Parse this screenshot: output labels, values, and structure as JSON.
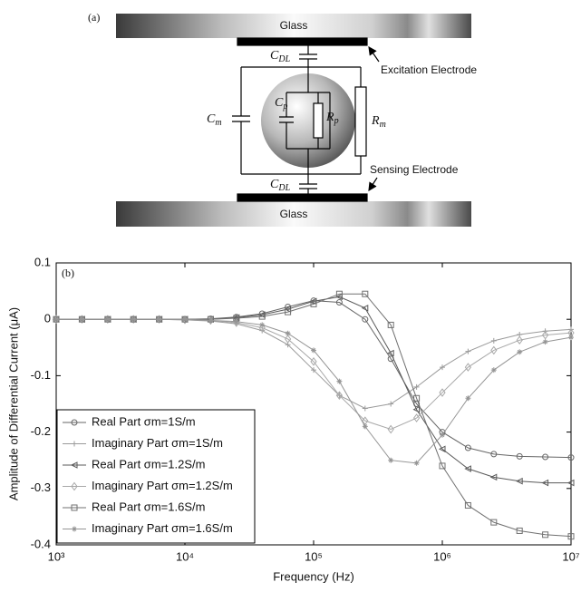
{
  "diagram": {
    "label": "(a)",
    "top_glass": "Glass",
    "bottom_glass": "Glass",
    "excitation": "Excitation Electrode",
    "sensing": "Sensing Electrode",
    "c_dl_top": {
      "main": "C",
      "sub": "DL"
    },
    "c_dl_bottom": {
      "main": "C",
      "sub": "DL"
    },
    "c_m": {
      "main": "C",
      "sub": "m"
    },
    "c_p": {
      "main": "C",
      "sub": "p"
    },
    "r_p": {
      "main": "R",
      "sub": "p"
    },
    "r_m": {
      "main": "R",
      "sub": "m"
    }
  },
  "chart_data": {
    "type": "line",
    "label": "(b)",
    "x_label": "Frequency (Hz)",
    "y_label": "Amplitude of Differential Current (μA)",
    "log_x": true,
    "legend": "lower left",
    "xlim": [
      1000,
      10000000
    ],
    "xticks": [
      {
        "value": 1000,
        "label": "10³"
      },
      {
        "value": 10000,
        "label": "10⁴"
      },
      {
        "value": 100000,
        "label": "10⁵"
      },
      {
        "value": 1000000,
        "label": "10⁶"
      },
      {
        "value": 10000000,
        "label": "10⁷"
      }
    ],
    "ylim": [
      -0.4,
      0.1
    ],
    "yticks": [
      0.1,
      0,
      -0.1,
      -0.2,
      -0.3,
      -0.4
    ],
    "x": [
      1000,
      1585,
      2512,
      3981,
      6310,
      10000,
      15849,
      25119,
      39811,
      63096,
      100000,
      158489,
      251189,
      398107,
      630957,
      1000000,
      1584893,
      2511886,
      3981072,
      6309573,
      10000000
    ],
    "series": [
      {
        "name": "Real Part σm=1S/m",
        "color": "#666666",
        "marker": "circle",
        "values": [
          0,
          0,
          0,
          0,
          0,
          0,
          0.001,
          0.004,
          0.01,
          0.022,
          0.033,
          0.03,
          0.0,
          -0.07,
          -0.15,
          -0.2,
          -0.228,
          -0.239,
          -0.243,
          -0.244,
          -0.245
        ]
      },
      {
        "name": "Imaginary Part σm=1S/m",
        "color": "#9a9a9a",
        "marker": "plus",
        "values": [
          0,
          0,
          0,
          0,
          0,
          -0.001,
          -0.003,
          -0.008,
          -0.02,
          -0.045,
          -0.09,
          -0.135,
          -0.158,
          -0.15,
          -0.12,
          -0.085,
          -0.057,
          -0.038,
          -0.027,
          -0.021,
          -0.018
        ]
      },
      {
        "name": "Real Part σm=1.2S/m",
        "color": "#5a5a5a",
        "marker": "triangle",
        "values": [
          0,
          0,
          0,
          0,
          0,
          0,
          0,
          0.003,
          0.008,
          0.018,
          0.032,
          0.04,
          0.02,
          -0.06,
          -0.16,
          -0.23,
          -0.265,
          -0.28,
          -0.287,
          -0.29,
          -0.29
        ]
      },
      {
        "name": "Imaginary Part σm=1.2S/m",
        "color": "#a8a8a8",
        "marker": "diamond",
        "values": [
          0,
          0,
          0,
          0,
          0,
          -0.001,
          -0.002,
          -0.006,
          -0.015,
          -0.035,
          -0.075,
          -0.135,
          -0.18,
          -0.195,
          -0.175,
          -0.13,
          -0.085,
          -0.055,
          -0.037,
          -0.028,
          -0.024
        ]
      },
      {
        "name": "Real Part σm=1.6S/m",
        "color": "#707070",
        "marker": "square",
        "values": [
          0,
          0,
          0,
          0,
          0,
          0,
          0,
          0.002,
          0.005,
          0.013,
          0.027,
          0.045,
          0.045,
          -0.01,
          -0.14,
          -0.26,
          -0.33,
          -0.36,
          -0.375,
          -0.382,
          -0.385
        ]
      },
      {
        "name": "Imaginary Part σm=1.6S/m",
        "color": "#959595",
        "marker": "star",
        "values": [
          0,
          0,
          0,
          0,
          0,
          0,
          -0.002,
          -0.004,
          -0.01,
          -0.025,
          -0.055,
          -0.11,
          -0.19,
          -0.25,
          -0.255,
          -0.205,
          -0.14,
          -0.09,
          -0.058,
          -0.04,
          -0.032
        ]
      }
    ]
  }
}
